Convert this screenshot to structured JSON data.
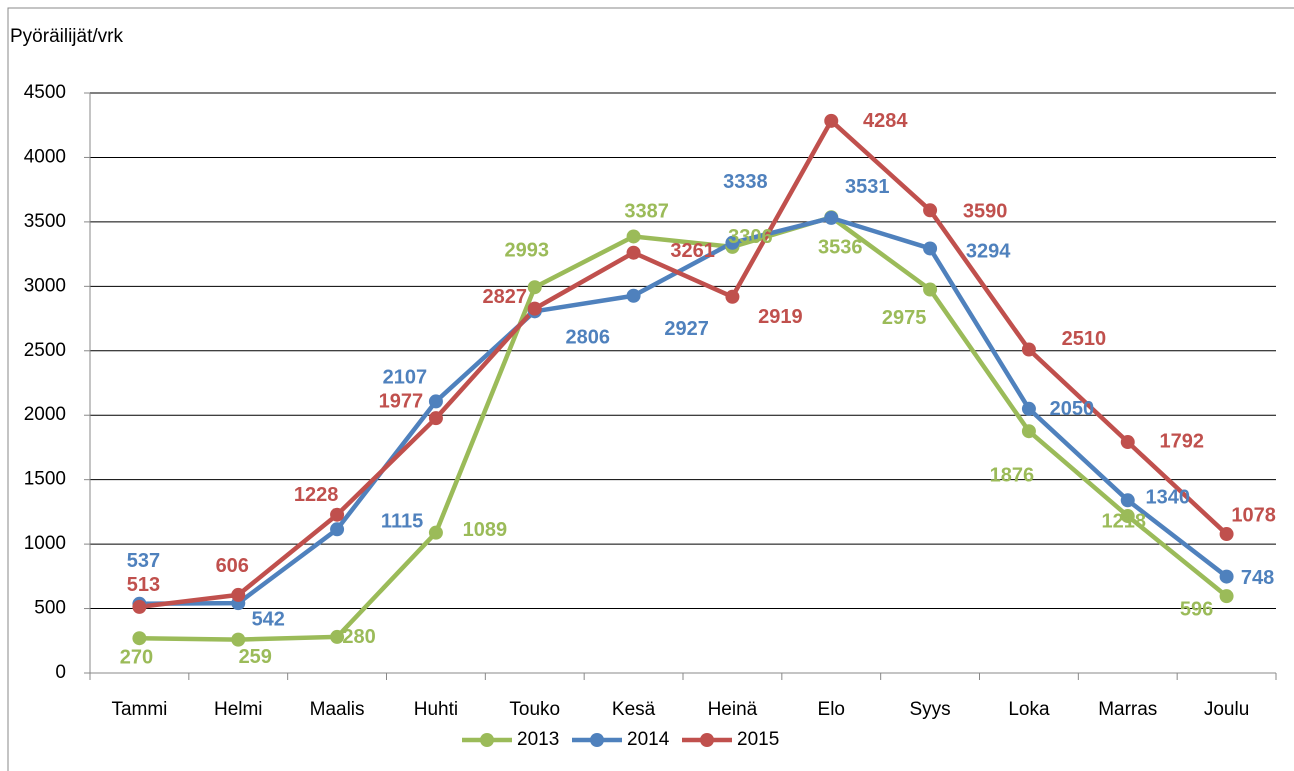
{
  "chart_data": {
    "type": "line",
    "ylabel": "Pyöräilijät/vrk",
    "categories": [
      "Tammi",
      "Helmi",
      "Maalis",
      "Huhti",
      "Touko",
      "Kesä",
      "Heinä",
      "Elo",
      "Syys",
      "Loka",
      "Marras",
      "Joulu"
    ],
    "series": [
      {
        "name": "2013",
        "color": "#9bbb59",
        "values": [
          270,
          259,
          280,
          1089,
          2993,
          3387,
          3306,
          3536,
          2975,
          1876,
          1218,
          596
        ]
      },
      {
        "name": "2014",
        "color": "#4f81bd",
        "values": [
          537,
          542,
          1115,
          2107,
          2806,
          2927,
          3338,
          3531,
          3294,
          2050,
          1340,
          748
        ]
      },
      {
        "name": "2015",
        "color": "#c0504d",
        "values": [
          513,
          606,
          1228,
          1977,
          2827,
          3261,
          2919,
          4284,
          3590,
          2510,
          1792,
          1078
        ]
      }
    ],
    "ylim": [
      0,
      4500
    ],
    "yticks": [
      0,
      500,
      1000,
      1500,
      2000,
      2500,
      3000,
      3500,
      4000,
      4500
    ],
    "grid": true,
    "legend": "bottom"
  }
}
